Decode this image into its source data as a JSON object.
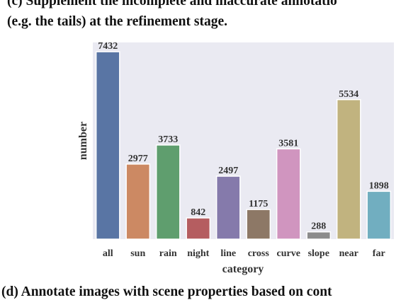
{
  "captions": {
    "c_line1": "(c) Supplement the incomplete and inaccurate annotatio",
    "c_line2": "(e.g. the tails) at the refinement stage.",
    "d_line1": "(d) Annotate images with scene properties based on cont"
  },
  "chart_data": {
    "type": "bar",
    "categories": [
      "all",
      "sun",
      "rain",
      "night",
      "line",
      "cross",
      "curve",
      "slope",
      "near",
      "far"
    ],
    "values": [
      7432,
      2977,
      3733,
      842,
      2497,
      1175,
      3581,
      288,
      5534,
      1898
    ],
    "xlabel": "category",
    "ylabel": "number",
    "ylim": [
      0,
      7800
    ],
    "grid": false,
    "legend": "none",
    "background_color": "#eaeaf2",
    "colors": [
      "#5975a4",
      "#cc8963",
      "#5f9e6e",
      "#b55d60",
      "#857aab",
      "#8d7866",
      "#d095bf",
      "#8c8c8c",
      "#c1b37f",
      "#71aec0"
    ]
  }
}
